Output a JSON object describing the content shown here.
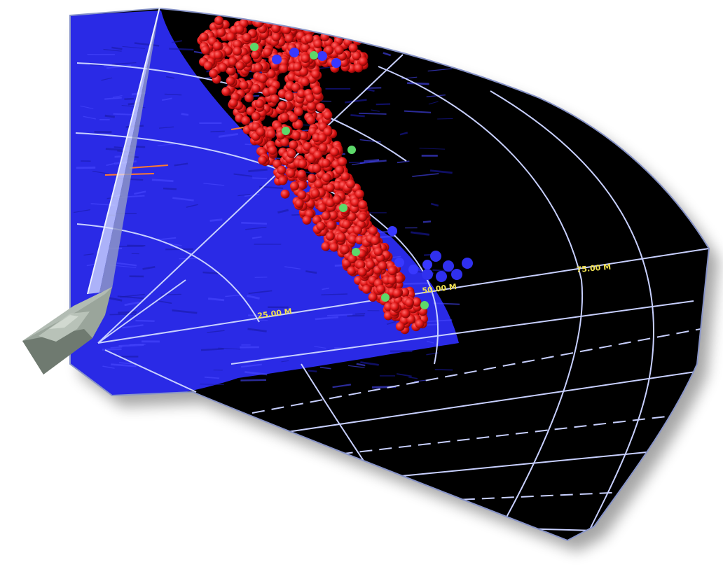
{
  "scene": {
    "range_labels": [
      {
        "text": "25.00 M"
      },
      {
        "text": "50.00 M"
      },
      {
        "text": "75.00 M"
      }
    ]
  },
  "colors": {
    "background": "#ffffff",
    "sonar_fan": "#000000",
    "grid_lines": "#c8d0ff",
    "seabed": "#2a2ae6",
    "fish_school": "#e01616",
    "highlight_targets": "#5dd86a",
    "label_text": "#f0e050",
    "vessel": "#9aa59b",
    "beam": "#d8e0ff"
  },
  "icons": {
    "vessel": "boat-icon"
  }
}
